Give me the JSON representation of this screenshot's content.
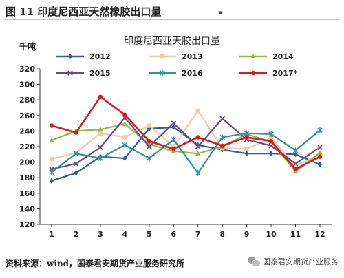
{
  "figure_title": "图 11 印度尼西亚天然橡胶出口量",
  "source_note": "资料来源：wind，国泰君安期货产业服务研究所",
  "brand": "国泰君安期货产业服务",
  "chart_data": {
    "type": "line",
    "title": "印度尼西亚天胶出口量",
    "ylabel": "千吨",
    "xlabel": "",
    "x": [
      1,
      2,
      3,
      4,
      5,
      6,
      7,
      8,
      9,
      10,
      11,
      12
    ],
    "ylim": [
      120,
      320
    ],
    "yticks": [
      120,
      140,
      160,
      180,
      200,
      220,
      240,
      260,
      280,
      300,
      320
    ],
    "grid": false,
    "legend_position": "top",
    "series": [
      {
        "name": "2012",
        "color": "#2e5f9e",
        "marker": "diamond",
        "values": [
          176,
          186,
          207,
          205,
          243,
          245,
          222,
          216,
          211,
          211,
          210,
          197
        ]
      },
      {
        "name": "2013",
        "color": "#f5c8a8",
        "marker": "square",
        "values": [
          204,
          212,
          237,
          232,
          247,
          220,
          266,
          218,
          217,
          231,
          195,
          210
        ]
      },
      {
        "name": "2014",
        "color": "#8fbc3c",
        "marker": "triangle",
        "values": [
          228,
          240,
          242,
          249,
          223,
          214,
          211,
          220,
          236,
          226,
          188,
          212
        ]
      },
      {
        "name": "2015",
        "color": "#6a4c8c",
        "marker": "x",
        "values": [
          191,
          198,
          219,
          257,
          220,
          250,
          220,
          256,
          229,
          221,
          198,
          219
        ]
      },
      {
        "name": "2016",
        "color": "#2e94a0",
        "marker": "star",
        "values": [
          187,
          211,
          205,
          222,
          205,
          229,
          186,
          232,
          237,
          236,
          215,
          241
        ]
      },
      {
        "name": "2017*",
        "color": "#e01818",
        "marker": "circle",
        "values": [
          247,
          238,
          284,
          261,
          227,
          217,
          232,
          221,
          232,
          227,
          191,
          207
        ]
      }
    ]
  }
}
